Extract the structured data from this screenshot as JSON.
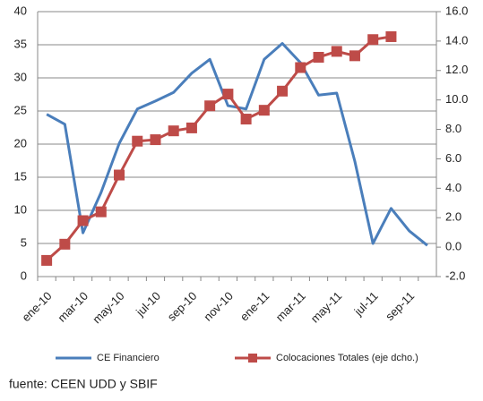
{
  "chart_data": {
    "type": "line",
    "categories": [
      "ene-10",
      null,
      "mar-10",
      null,
      "may-10",
      null,
      "jul-10",
      null,
      "sep-10",
      null,
      "nov-10",
      null,
      "ene-11",
      null,
      "mar-11",
      null,
      "may-11",
      null,
      "jul-11",
      null,
      "sep-11",
      null
    ],
    "series": [
      {
        "name": "CE Financiero",
        "color": "#4a7ebb",
        "axis": "y",
        "values": [
          24.5,
          23,
          6.6,
          12.7,
          20.1,
          25.3,
          26.5,
          27.8,
          30.7,
          32.8,
          25.8,
          25.3,
          32.8,
          35.2,
          32.3,
          27.4,
          27.7,
          17.4,
          5.0,
          10.3,
          6.9,
          4.7
        ]
      },
      {
        "name": "Colocaciones Totales (eje dcho.)",
        "color": "#be4b48",
        "axis": "y2",
        "values": [
          -0.9,
          0.2,
          1.8,
          2.4,
          4.9,
          7.2,
          7.3,
          7.9,
          8.1,
          9.6,
          10.4,
          8.7,
          9.3,
          10.6,
          12.2,
          12.9,
          13.3,
          13.0,
          14.1,
          14.3,
          null,
          null
        ]
      }
    ],
    "ylim": [
      0,
      40
    ],
    "yticks": [
      0,
      5,
      10,
      15,
      20,
      25,
      30,
      35,
      40
    ],
    "y2lim": [
      -2,
      16
    ],
    "y2ticks": [
      {
        "value": -2,
        "label": "-2.0"
      },
      {
        "value": 0,
        "label": "0.0"
      },
      {
        "value": 2,
        "label": "2.0"
      },
      {
        "value": 4,
        "label": "4.0"
      },
      {
        "value": 6,
        "label": "6.0"
      },
      {
        "value": 8,
        "label": "8.0"
      },
      {
        "value": 10,
        "label": "10.0"
      },
      {
        "value": 12,
        "label": "12.0"
      },
      {
        "value": 14,
        "label": "14.0"
      },
      {
        "value": 16,
        "label": "16.0"
      }
    ],
    "grid": true,
    "legend": "bottom",
    "source": "fuente: CEEN UDD y SBIF"
  }
}
